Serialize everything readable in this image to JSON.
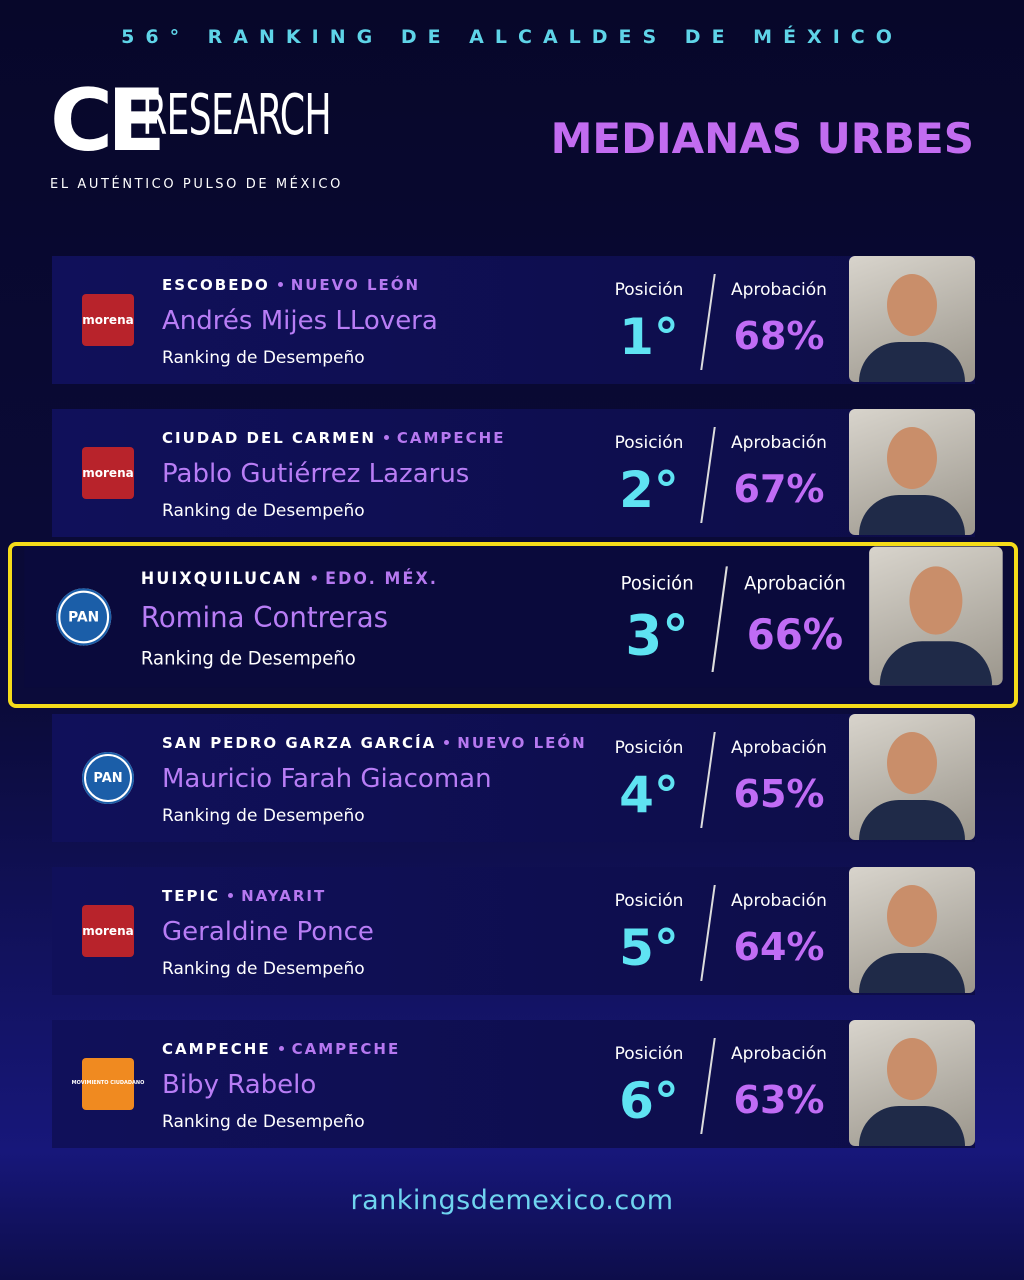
{
  "header": {
    "top_line": "56° RANKING DE ALCALDES DE MÉXICO",
    "logo_ce": "CE",
    "logo_research": "RESEARCH",
    "tagline": "EL AUTÉNTICO PULSO DE MÉXICO",
    "title": "MEDIANAS URBES"
  },
  "rows": [
    {
      "city": "ESCOBEDO",
      "state": "NUEVO LEÓN",
      "name": "Andrés Mijes LLovera",
      "subtitle": "Ranking de Desempeño",
      "position_label": "Posición",
      "position": "1°",
      "approval_label": "Aprobación",
      "approval": "68%",
      "party": "morena"
    },
    {
      "city": "CIUDAD DEL CARMEN",
      "state": "CAMPECHE",
      "name": "Pablo Gutiérrez Lazarus",
      "subtitle": "Ranking de Desempeño",
      "position_label": "Posición",
      "position": "2°",
      "approval_label": "Aprobación",
      "approval": "67%",
      "party": "morena"
    },
    {
      "city": "HUIXQUILUCAN",
      "state": "EDO. MÉX.",
      "name": "Romina Contreras",
      "subtitle": "Ranking de Desempeño",
      "position_label": "Posición",
      "position": "3°",
      "approval_label": "Aprobación",
      "approval": "66%",
      "party": "PAN",
      "highlight": true
    },
    {
      "city": "SAN PEDRO GARZA GARCÍA",
      "state": "NUEVO LEÓN",
      "name": "Mauricio Farah Giacoman",
      "subtitle": "Ranking de Desempeño",
      "position_label": "Posición",
      "position": "4°",
      "approval_label": "Aprobación",
      "approval": "65%",
      "party": "PAN"
    },
    {
      "city": "TEPIC",
      "state": "NAYARIT",
      "name": "Geraldine Ponce",
      "subtitle": "Ranking de Desempeño",
      "position_label": "Posición",
      "position": "5°",
      "approval_label": "Aprobación",
      "approval": "64%",
      "party": "morena"
    },
    {
      "city": "CAMPECHE",
      "state": "CAMPECHE",
      "name": "Biby Rabelo",
      "subtitle": "Ranking de Desempeño",
      "position_label": "Posición",
      "position": "6°",
      "approval_label": "Aprobación",
      "approval": "63%",
      "party": "MOVIMIENTO CIUDADANO"
    }
  ],
  "footer": {
    "url": "rankingsdemexico.com"
  }
}
